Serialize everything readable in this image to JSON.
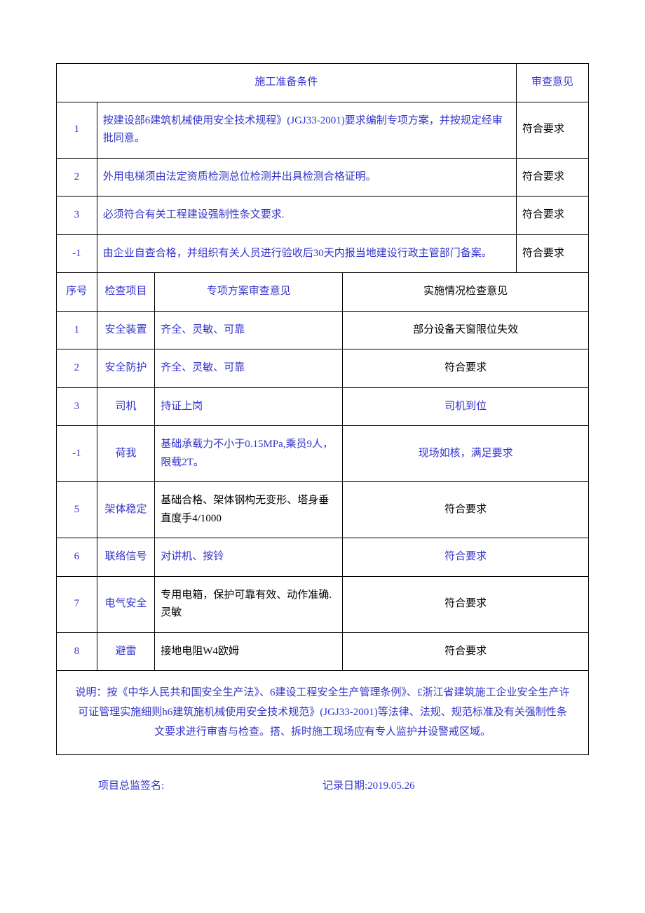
{
  "colors": {
    "text_blue": "#3333cc",
    "text_black": "#000000",
    "border": "#000000",
    "background": "#ffffff"
  },
  "typography": {
    "body_fontsize": 15,
    "line_height": 1.7,
    "font_family": "SimSun"
  },
  "table1": {
    "type": "table",
    "header_left": "施工准备条件",
    "header_right": "审查意见",
    "rows": [
      {
        "num": "1",
        "desc": "按建设部6建筑机械使用安全技术规程》(JGJ33-2001)要求编制专项方案，并按规定经审批同意。",
        "review": "符合要求"
      },
      {
        "num": "2",
        "desc": "外用电梯须由法定资质检测总位检测并出具检测合格证明。",
        "review": "符合要求"
      },
      {
        "num": "3",
        "desc": "必须符合有关工程建设强制性条文要求.",
        "review": "符合要求"
      },
      {
        "num": "-1",
        "desc": "由企业自查合格，并组织有关人员进行验收后30天内报当地建设行政主管部门备案。",
        "review": "符合要求"
      }
    ]
  },
  "table2": {
    "type": "table",
    "headers": {
      "seq": "序号",
      "item": "检查项目",
      "plan": "专项方案审查意见",
      "status": "实施情况检查意见"
    },
    "rows": [
      {
        "num": "1",
        "item": "安全装置",
        "plan": "齐全、灵敏、可靠",
        "status": "部分设备天窗限位失效"
      },
      {
        "num": "2",
        "item": "安全防护",
        "plan": "齐全、灵敏、可靠",
        "status": "符合要求"
      },
      {
        "num": "3",
        "item": "司机",
        "plan": "持证上岗",
        "status": "司机到位"
      },
      {
        "num": "-1",
        "item": "荷我",
        "plan": "基础承载力不小于0.15MPa,乘员9人，限载2T。",
        "status": "现场如核，满足要求"
      },
      {
        "num": "5",
        "item": "架体稳定",
        "plan": "基础合格、架体钢构无变形、塔身垂直度手4/1000",
        "status": "符合要求"
      },
      {
        "num": "6",
        "item": "联络信号",
        "plan": "对讲机、按铃",
        "status": "符合要求"
      },
      {
        "num": "7",
        "item": "电气安全",
        "plan": "专用电箱，保护可靠有效、动作准确.灵敏",
        "status": "符合要求"
      },
      {
        "num": "8",
        "item": "避雷",
        "plan": "接地电阻W4欧姆",
        "status": "符合要求"
      }
    ]
  },
  "note": "说明：按《中华人民共和国安全生产法》、6建设工程安全生产管理条例》、£浙江省建筑施工企业安全生产许可证管理实施细则h6建筑施机械使用安全技术规范》(JGJ33-2001)等法律、法规、规范标准及有关强制性条文要求进行审杳与检查。搭、拆时施工现场应有专人监护并设警戒区域。",
  "footer": {
    "left": "项目总监签名:",
    "right": "记录日期:2019.05.26"
  }
}
